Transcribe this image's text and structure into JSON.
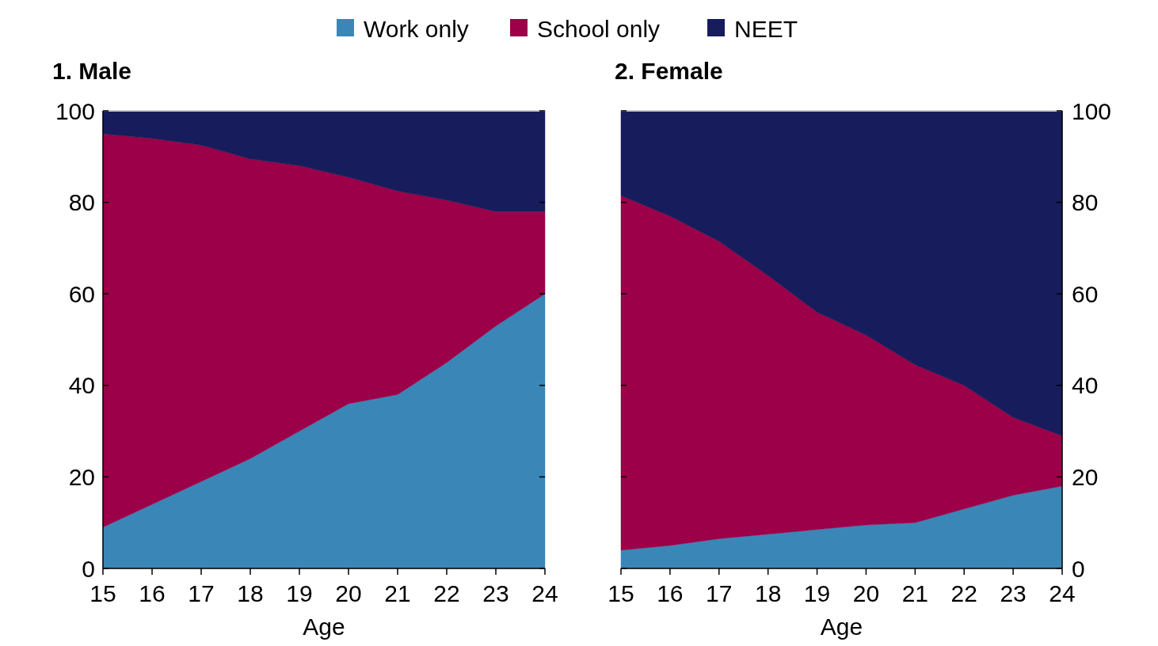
{
  "chart_data": [
    {
      "type": "area",
      "title": "1. Male",
      "xlabel": "Age",
      "stacked": true,
      "legend": "top",
      "x": [
        15,
        16,
        17,
        18,
        19,
        20,
        21,
        22,
        23,
        24
      ],
      "xlim": [
        15,
        24
      ],
      "xticks": [
        15,
        16,
        17,
        18,
        19,
        20,
        21,
        22,
        23,
        24
      ],
      "ylim": [
        0,
        100
      ],
      "yticks": [
        0,
        20,
        40,
        60,
        80,
        100
      ],
      "series": [
        {
          "name": "Work only",
          "color": "#3a87b7",
          "values": [
            9,
            14,
            19,
            24,
            30,
            36,
            38,
            45,
            53,
            60
          ]
        },
        {
          "name": "School only",
          "color": "#9b0048",
          "values": [
            86,
            80,
            73.5,
            65.5,
            58,
            49.5,
            44.5,
            35.5,
            25,
            18
          ]
        },
        {
          "name": "NEET",
          "color": "#171c5c",
          "values": [
            5,
            6,
            7.5,
            10.5,
            12,
            14.5,
            17.5,
            19.5,
            22,
            22
          ]
        }
      ]
    },
    {
      "type": "area",
      "title": "2. Female",
      "xlabel": "Age",
      "stacked": true,
      "x": [
        15,
        16,
        17,
        18,
        19,
        20,
        21,
        22,
        23,
        24
      ],
      "xlim": [
        15,
        24
      ],
      "xticks": [
        15,
        16,
        17,
        18,
        19,
        20,
        21,
        22,
        23,
        24
      ],
      "ylim": [
        0,
        100
      ],
      "yticks": [
        0,
        20,
        40,
        60,
        80,
        100
      ],
      "series": [
        {
          "color": "#3a87b7",
          "values": [
            4,
            5,
            6.5,
            7.5,
            8.5,
            9.5,
            10,
            13,
            16,
            18
          ]
        },
        {
          "color": "#9b0048",
          "values": [
            77.5,
            72,
            65,
            56.5,
            47.5,
            41.5,
            34.5,
            27,
            17,
            11
          ]
        },
        {
          "color": "#171c5c",
          "values": [
            18.5,
            23,
            28.5,
            36,
            44,
            49,
            55.5,
            60,
            67,
            71
          ]
        }
      ]
    }
  ]
}
